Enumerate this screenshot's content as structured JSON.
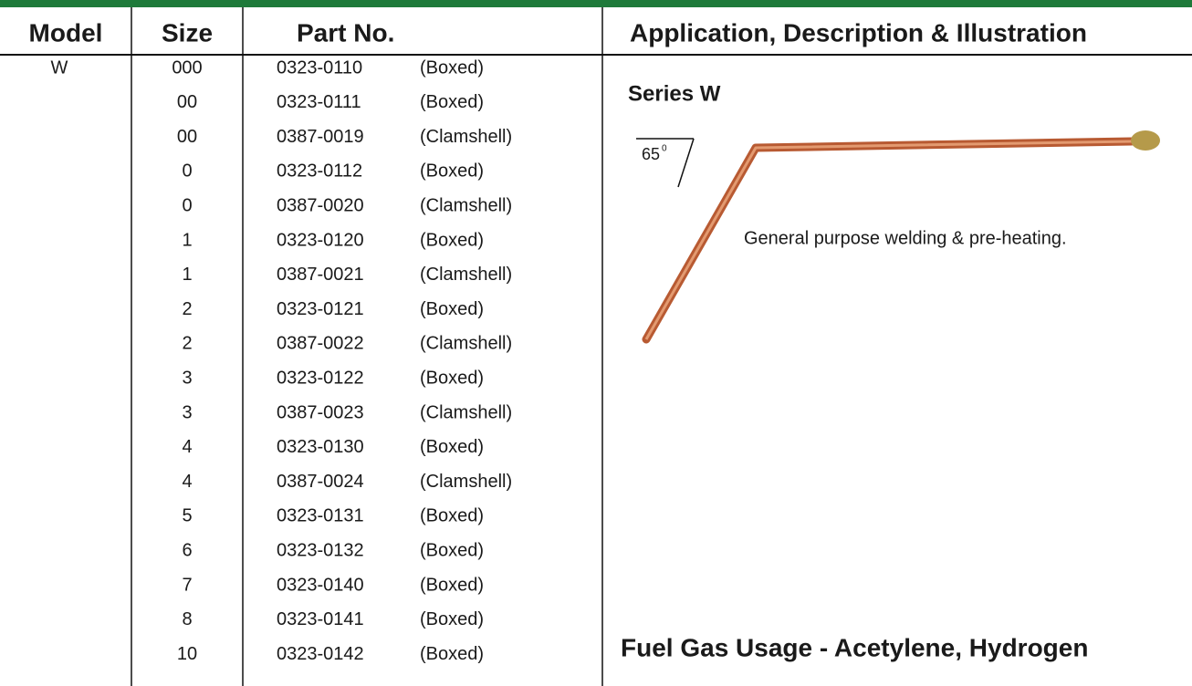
{
  "table": {
    "headers": [
      "Model",
      "Size",
      "Part No.",
      "Application, Description & Illustration"
    ],
    "model": "W",
    "rows": [
      [
        "000",
        "0323-0110",
        "(Boxed)"
      ],
      [
        "00",
        "0323-0111",
        "(Boxed)"
      ],
      [
        "00",
        "0387-0019",
        "(Clamshell)"
      ],
      [
        "0",
        "0323-0112",
        "(Boxed)"
      ],
      [
        "0",
        "0387-0020",
        "(Clamshell)"
      ],
      [
        "1",
        "0323-0120",
        "(Boxed)"
      ],
      [
        "1",
        "0387-0021",
        "(Clamshell)"
      ],
      [
        "2",
        "0323-0121",
        "(Boxed)"
      ],
      [
        "2",
        "0387-0022",
        "(Clamshell)"
      ],
      [
        "3",
        "0323-0122",
        "(Boxed)"
      ],
      [
        "3",
        "0387-0023",
        "(Clamshell)"
      ],
      [
        "4",
        "0323-0130",
        "(Boxed)"
      ],
      [
        "4",
        "0387-0024",
        "(Clamshell)"
      ],
      [
        "5",
        "0323-0131",
        "(Boxed)"
      ],
      [
        "6",
        "0323-0132",
        "(Boxed)"
      ],
      [
        "7",
        "0323-0140",
        "(Boxed)"
      ],
      [
        "8",
        "0323-0141",
        "(Boxed)"
      ],
      [
        "10",
        "0323-0142",
        "(Boxed)"
      ]
    ]
  },
  "application": {
    "series": "Series W",
    "angle": "65",
    "angle_sup": "0",
    "description": "General purpose welding & pre-heating.",
    "footer": "Fuel Gas Usage - Acetylene, Hydrogen"
  }
}
